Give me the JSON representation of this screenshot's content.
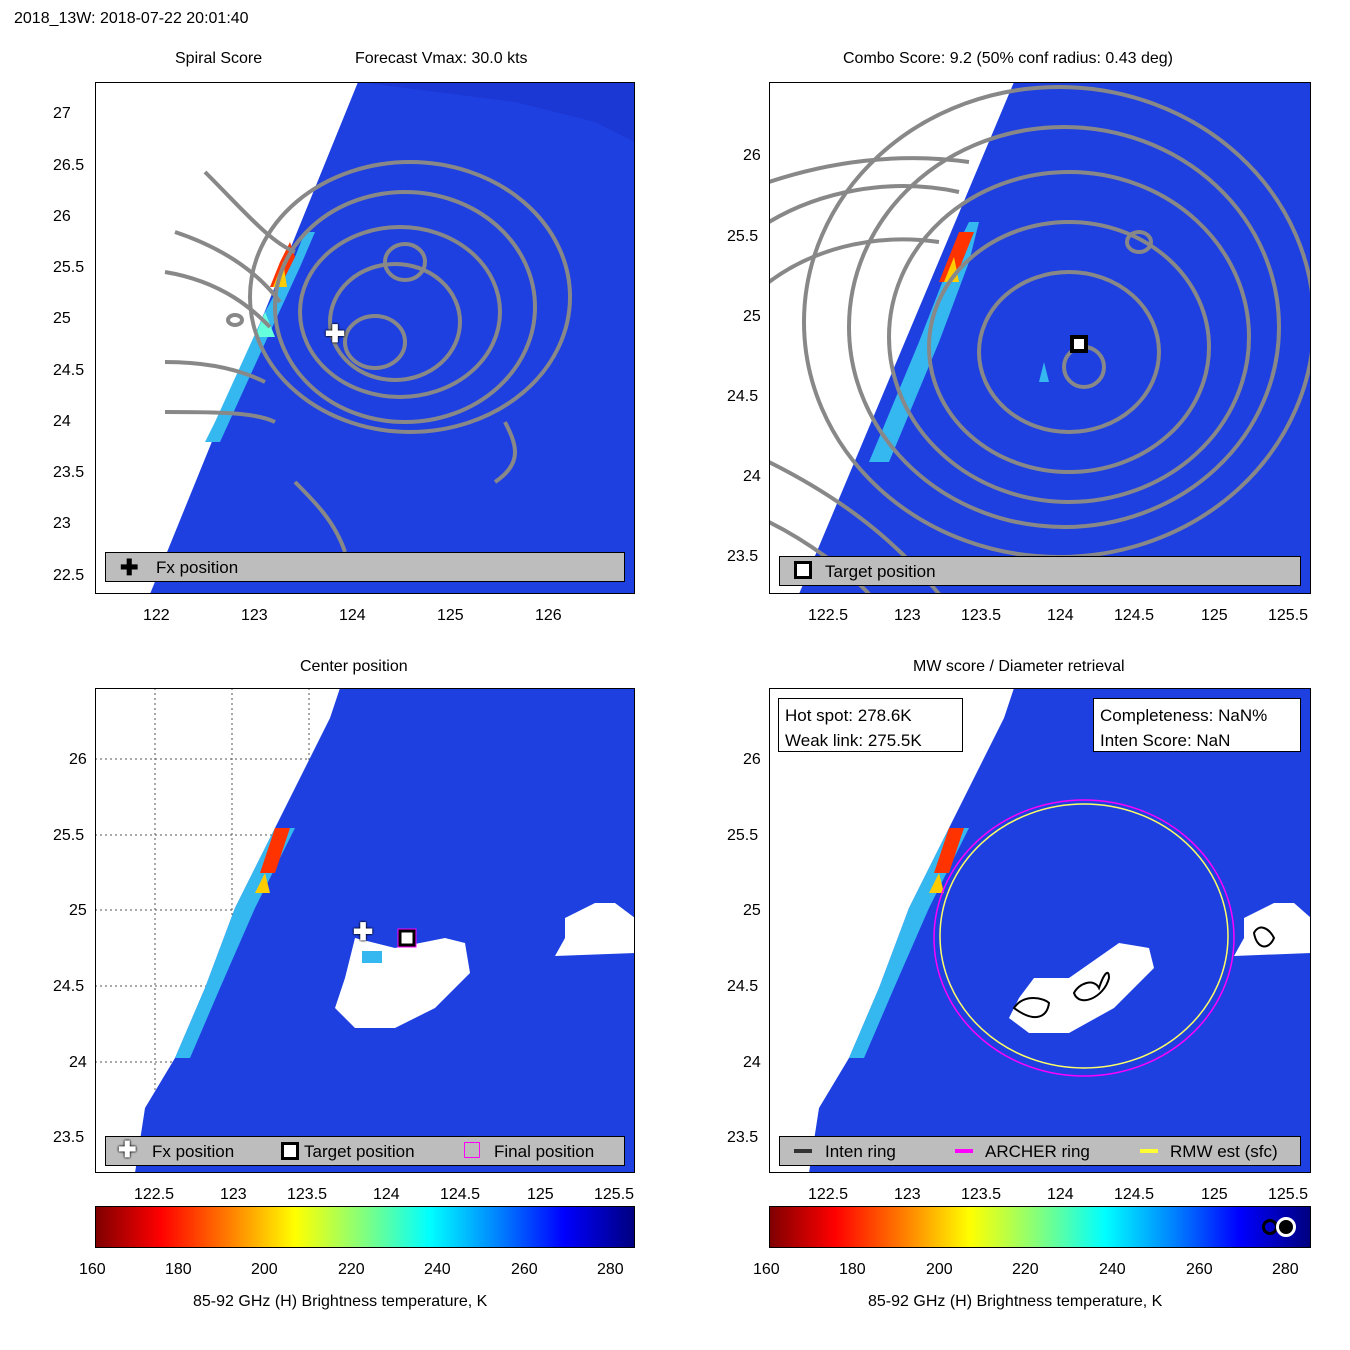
{
  "header": {
    "title": "2018_13W: 2018-07-22 20:01:40"
  },
  "panels": {
    "spiral": {
      "title_left": "Spiral Score",
      "title_right": "Forecast Vmax: 30.0 kts",
      "xticks": [
        "122",
        "123",
        "124",
        "125",
        "126"
      ],
      "yticks": [
        "27",
        "26.5",
        "26",
        "25.5",
        "25",
        "24.5",
        "24",
        "23.5",
        "23",
        "22.5"
      ],
      "legend": {
        "fx": "Fx position"
      }
    },
    "combo": {
      "title": "Combo Score: 9.2  (50% conf radius: 0.43 deg)",
      "xticks": [
        "122.5",
        "123",
        "123.5",
        "124",
        "124.5",
        "125",
        "125.5"
      ],
      "yticks": [
        "26",
        "25.5",
        "25",
        "24.5",
        "24",
        "23.5"
      ],
      "legend": {
        "target": "Target position"
      }
    },
    "center": {
      "title": "Center position",
      "xticks": [
        "122.5",
        "123",
        "123.5",
        "124",
        "124.5",
        "125",
        "125.5"
      ],
      "yticks": [
        "26",
        "25.5",
        "25",
        "24.5",
        "24",
        "23.5"
      ],
      "legend": {
        "fx": "Fx position",
        "target": "Target position",
        "final": "Final position"
      }
    },
    "mw": {
      "title": "MW score / Diameter retrieval",
      "xticks": [
        "122.5",
        "123",
        "123.5",
        "124",
        "124.5",
        "125",
        "125.5"
      ],
      "yticks": [
        "26",
        "25.5",
        "25",
        "24.5",
        "24",
        "23.5"
      ],
      "info_left": {
        "hot_spot": "Hot spot: 278.6K",
        "weak_link": "Weak link: 275.5K"
      },
      "info_right": {
        "completeness": "Completeness: NaN%",
        "inten_score": "Inten Score: NaN"
      },
      "legend": {
        "inten": "Inten ring",
        "archer": "ARCHER ring",
        "rmw": "RMW est (sfc)"
      }
    }
  },
  "colorbar": {
    "ticks": [
      "160",
      "180",
      "200",
      "220",
      "240",
      "260",
      "280"
    ],
    "label": "85-92 GHz (H) Brightness temperature, K",
    "range": [
      160,
      285
    ]
  },
  "colors": {
    "background_blue": "#1f3fe0",
    "contour": "#808080",
    "archer_ring": "#ff00ff",
    "rmw_ring": "#ffff66"
  },
  "chart_data": [
    {
      "type": "heatmap",
      "title": "Spiral Score",
      "subtitle": "Forecast Vmax: 30.0 kts",
      "xlim": [
        121.4,
        126.9
      ],
      "ylim": [
        22.3,
        27.3
      ],
      "markers": [
        {
          "name": "Fx position",
          "x": 123.85,
          "y": 24.87
        }
      ]
    },
    {
      "type": "heatmap",
      "title": "Combo Score: 9.2  (50% conf radius: 0.43 deg)",
      "xlim": [
        122.0,
        125.6
      ],
      "ylim": [
        23.25,
        26.45
      ],
      "markers": [
        {
          "name": "Target position",
          "x": 124.15,
          "y": 24.82
        }
      ]
    },
    {
      "type": "heatmap",
      "title": "Center position",
      "xlim": [
        122.0,
        125.6
      ],
      "ylim": [
        23.25,
        26.45
      ],
      "markers": [
        {
          "name": "Fx position",
          "x": 123.88,
          "y": 24.86
        },
        {
          "name": "Target position",
          "x": 124.15,
          "y": 24.82
        },
        {
          "name": "Final position",
          "x": 124.15,
          "y": 24.82
        }
      ]
    },
    {
      "type": "heatmap",
      "title": "MW score / Diameter retrieval",
      "xlim": [
        122.0,
        125.6
      ],
      "ylim": [
        23.25,
        26.45
      ],
      "rings": [
        {
          "name": "ARCHER ring",
          "cx": 124.15,
          "cy": 24.82,
          "r": 0.98
        },
        {
          "name": "RMW est (sfc)",
          "cx": 124.15,
          "cy": 24.82,
          "r": 0.95
        }
      ]
    }
  ]
}
